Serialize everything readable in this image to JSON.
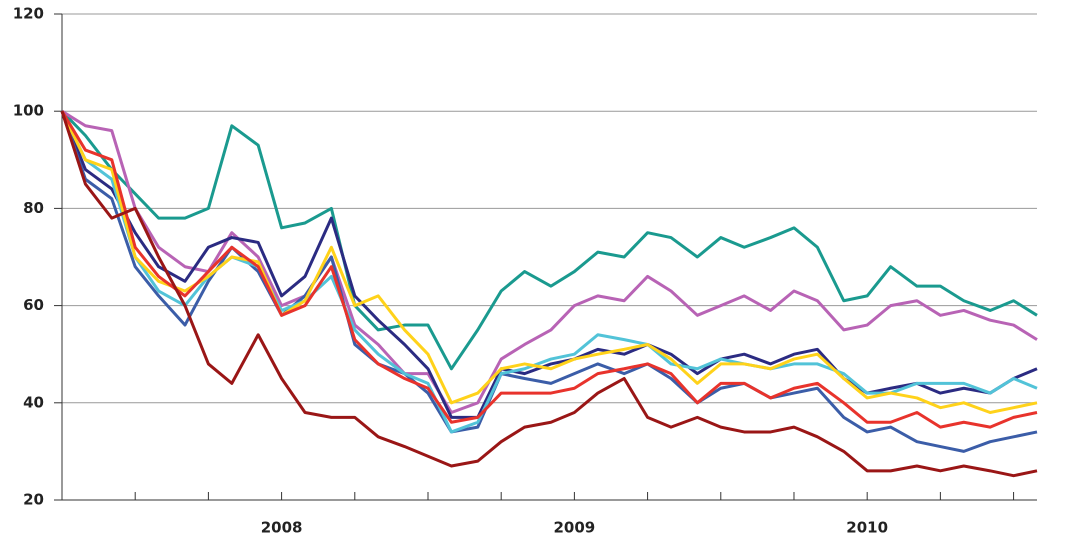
{
  "chart_data": {
    "type": "line",
    "x": [
      2007.75,
      2007.83,
      2007.92,
      2008.0,
      2008.08,
      2008.17,
      2008.25,
      2008.33,
      2008.42,
      2008.5,
      2008.58,
      2008.67,
      2008.75,
      2008.83,
      2008.92,
      2009.0,
      2009.08,
      2009.17,
      2009.25,
      2009.33,
      2009.42,
      2009.5,
      2009.58,
      2009.67,
      2009.75,
      2009.83,
      2009.92,
      2010.0,
      2010.08,
      2010.17,
      2010.25,
      2010.33,
      2010.42,
      2010.5,
      2010.58,
      2010.67,
      2010.75,
      2010.83,
      2010.92,
      2011.0,
      2011.08
    ],
    "series": [
      {
        "color": "#1a9a8f",
        "values": [
          100,
          95,
          88,
          83,
          78,
          78,
          80,
          97,
          93,
          76,
          77,
          80,
          60,
          55,
          56,
          56,
          47,
          55,
          63,
          67,
          64,
          67,
          71,
          70,
          75,
          74,
          70,
          74,
          72,
          74,
          76,
          72,
          61,
          62,
          68,
          64,
          64,
          61,
          59,
          61,
          58
        ]
      },
      {
        "color": "#b863b5",
        "values": [
          100,
          97,
          96,
          80,
          72,
          68,
          67,
          75,
          70,
          60,
          62,
          70,
          56,
          52,
          46,
          46,
          38,
          40,
          49,
          52,
          55,
          60,
          62,
          61,
          66,
          63,
          58,
          60,
          62,
          59,
          63,
          61,
          55,
          56,
          60,
          61,
          58,
          59,
          57,
          56,
          53
        ]
      },
      {
        "color": "#2b2b82",
        "values": [
          100,
          88,
          84,
          75,
          68,
          65,
          72,
          74,
          73,
          62,
          66,
          78,
          62,
          57,
          52,
          47,
          37,
          37,
          47,
          46,
          48,
          49,
          51,
          50,
          52,
          50,
          46,
          49,
          50,
          48,
          50,
          51,
          45,
          42,
          43,
          44,
          42,
          43,
          42,
          45,
          47
        ]
      },
      {
        "color": "#3b5da8",
        "values": [
          100,
          86,
          82,
          68,
          62,
          56,
          65,
          72,
          67,
          58,
          62,
          70,
          52,
          48,
          46,
          42,
          34,
          35,
          46,
          45,
          44,
          46,
          48,
          46,
          48,
          45,
          40,
          43,
          44,
          41,
          42,
          43,
          37,
          34,
          35,
          32,
          31,
          30,
          32,
          33,
          34
        ]
      },
      {
        "color": "#52c3d8",
        "values": [
          100,
          90,
          86,
          70,
          63,
          60,
          66,
          70,
          68,
          59,
          61,
          66,
          55,
          50,
          46,
          44,
          34,
          36,
          46,
          47,
          49,
          50,
          54,
          53,
          52,
          48,
          47,
          49,
          48,
          47,
          48,
          48,
          46,
          42,
          42,
          44,
          44,
          44,
          42,
          45,
          43
        ]
      },
      {
        "color": "#ffd21a",
        "values": [
          100,
          90,
          88,
          70,
          65,
          63,
          66,
          70,
          69,
          58,
          61,
          72,
          60,
          62,
          55,
          50,
          40,
          42,
          47,
          48,
          47,
          49,
          50,
          51,
          52,
          49,
          44,
          48,
          48,
          47,
          49,
          50,
          45,
          41,
          42,
          41,
          39,
          40,
          38,
          39,
          40
        ]
      },
      {
        "color": "#e8332c",
        "values": [
          100,
          92,
          90,
          72,
          66,
          62,
          67,
          72,
          68,
          58,
          60,
          68,
          53,
          48,
          45,
          43,
          36,
          37,
          42,
          42,
          42,
          43,
          46,
          47,
          48,
          46,
          40,
          44,
          44,
          41,
          43,
          44,
          40,
          36,
          36,
          38,
          35,
          36,
          35,
          37,
          38
        ]
      },
      {
        "color": "#9a1616",
        "values": [
          100,
          85,
          78,
          80,
          70,
          60,
          48,
          44,
          54,
          45,
          38,
          37,
          37,
          33,
          31,
          29,
          27,
          28,
          32,
          35,
          36,
          38,
          42,
          45,
          37,
          35,
          37,
          35,
          34,
          34,
          35,
          33,
          30,
          26,
          26,
          27,
          26,
          27,
          26,
          25,
          26
        ]
      }
    ],
    "xlim": [
      2007.75,
      2011.08
    ],
    "xticks": [
      {
        "value": 2008.5,
        "label": "2008"
      },
      {
        "value": 2009.5,
        "label": "2009"
      },
      {
        "value": 2010.5,
        "label": "2010"
      }
    ],
    "xminor_ticks": [
      2008,
      2008.25,
      2008.5,
      2008.75,
      2009,
      2009.25,
      2009.5,
      2009.75,
      2010,
      2010.25,
      2010.5,
      2010.75,
      2011
    ],
    "ylim": [
      20,
      120
    ],
    "yticks": [
      20,
      40,
      60,
      80,
      100,
      120
    ],
    "grid": true
  }
}
